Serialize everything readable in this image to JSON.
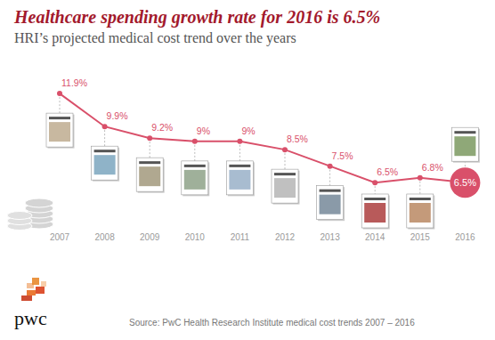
{
  "chart_data": {
    "type": "line",
    "title": "Healthcare spending growth rate for 2016 is 6.5%",
    "subtitle": "HRI’s projected medical cost trend over the years",
    "categories": [
      "2007",
      "2008",
      "2009",
      "2010",
      "2011",
      "2012",
      "2013",
      "2014",
      "2015",
      "2016"
    ],
    "values": [
      11.9,
      9.9,
      9.2,
      9,
      9,
      8.5,
      7.5,
      6.5,
      6.8,
      6.5
    ],
    "value_labels": [
      "11.9%",
      "9.9%",
      "9.2%",
      "9%",
      "9%",
      "8.5%",
      "7.5%",
      "6.5%",
      "6.8%",
      "6.5%"
    ],
    "color": "#d9506a",
    "marker": "circle",
    "data_labels": true,
    "tick_labels": "x",
    "grid": false,
    "ylim": [
      5,
      12.5
    ],
    "source": "Source:  PwC Health Research Institute medical cost trends 2007 – 2016",
    "logo": "pwc"
  }
}
